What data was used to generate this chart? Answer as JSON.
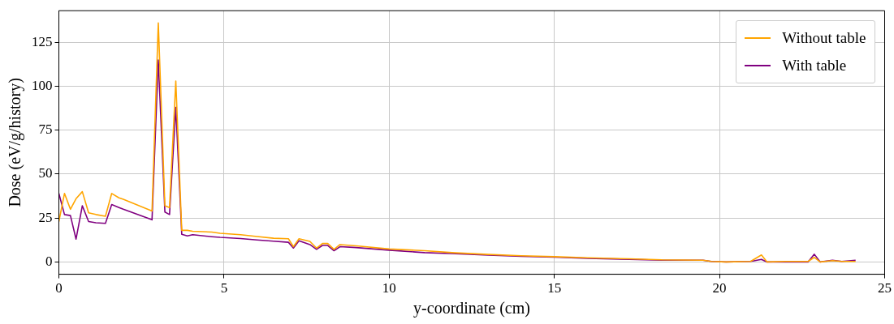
{
  "chart_data": {
    "type": "line",
    "xlabel": "y-coordinate (cm)",
    "ylabel": "Dose (eV/g/history)",
    "x": [
      0,
      0.17,
      0.35,
      0.52,
      0.71,
      0.9,
      1.12,
      1.41,
      1.6,
      1.82,
      1.95,
      2.82,
      3.01,
      3.21,
      3.35,
      3.54,
      3.72,
      3.89,
      4.05,
      4.63,
      4.88,
      5.5,
      6.0,
      6.5,
      6.95,
      7.1,
      7.27,
      7.6,
      7.8,
      7.98,
      8.14,
      8.33,
      8.51,
      9.0,
      10.0,
      11.07,
      12,
      13,
      14,
      15,
      16,
      17.27,
      18.26,
      19.5,
      19.75,
      20.2,
      20.94,
      21.27,
      21.44,
      22.0,
      22.68,
      22.87,
      23.05,
      23.42,
      23.7,
      24.12
    ],
    "series": [
      {
        "name": "Without table",
        "color": "#ffa500",
        "values": [
          23,
          39,
          30,
          36,
          40,
          28,
          27,
          26,
          39,
          36.5,
          35.7,
          29,
          136,
          32,
          31,
          103,
          18,
          18,
          17.5,
          17,
          16.3,
          15.5,
          14.5,
          13.5,
          13.2,
          8.7,
          13.2,
          11.7,
          7.9,
          10.5,
          10.5,
          7.2,
          9.9,
          9.2,
          7.4,
          6.4,
          5.2,
          4.3,
          3.5,
          3.0,
          2.4,
          1.8,
          1.2,
          1.0,
          0.3,
          0,
          0.3,
          4,
          0,
          0.3,
          0.3,
          2.6,
          0,
          0.8,
          0.3,
          0.3
        ]
      },
      {
        "name": "With table",
        "color": "#800080",
        "values": [
          39,
          27,
          26.4,
          13,
          32,
          23,
          22.3,
          22,
          32.7,
          31,
          30,
          24,
          115,
          28.4,
          27,
          88,
          15.8,
          14.8,
          15.5,
          14.4,
          14,
          13.3,
          12.5,
          11.8,
          11.2,
          7.9,
          12.1,
          9.9,
          7.2,
          9.4,
          9.4,
          6.4,
          8.7,
          8.2,
          6.7,
          5.3,
          4.7,
          3.9,
          3.2,
          2.7,
          2.1,
          1.5,
          1.0,
          1.0,
          0.3,
          0,
          0.3,
          1.5,
          0,
          0,
          0,
          4.4,
          0,
          1,
          0.3,
          1.0
        ]
      }
    ],
    "xlim": [
      0,
      25
    ],
    "xticks": [
      0,
      5,
      10,
      15,
      20,
      25
    ],
    "ylim": [
      -7,
      143
    ],
    "yticks": [
      0,
      25,
      50,
      75,
      100,
      125
    ],
    "grid": true,
    "legend": "top right",
    "marker": "none",
    "line_style": "solid"
  }
}
